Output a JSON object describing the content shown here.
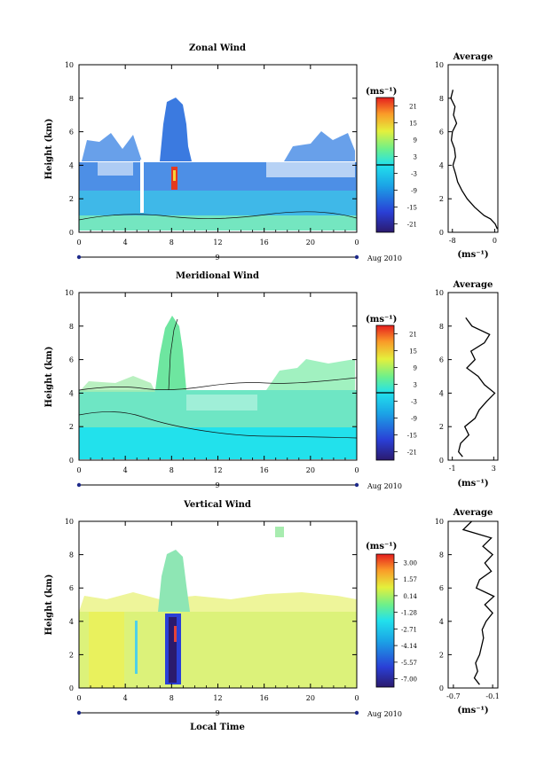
{
  "shared": {
    "x_ticks": [
      "0",
      "4",
      "8",
      "12",
      "16",
      "20",
      "0"
    ],
    "x_range": [
      0,
      24
    ],
    "date_day": "9",
    "date_label": "Aug 2010",
    "ylabel": "Height (km)",
    "y_ticks": [
      "0",
      "2",
      "4",
      "6",
      "8",
      "10"
    ],
    "y_range": [
      0,
      10
    ],
    "unit_label": "(ms⁻¹)",
    "bottom_xlabel": "Local Time"
  },
  "chart_data": [
    {
      "type": "heatmap",
      "title": "Zonal Wind",
      "colorbar_ticks": [
        "21",
        "15",
        "9",
        "3",
        "-3",
        "-9",
        "-15",
        "-21"
      ],
      "avg_title": "Average",
      "avg_ticks": [
        "-8",
        "0"
      ],
      "avg_xrange": [
        -8.8,
        0.6
      ],
      "avg_profile": {
        "height": [
          0.2,
          0.5,
          0.8,
          1.0,
          1.5,
          2.0,
          2.5,
          3.0,
          3.5,
          4.0,
          4.5,
          5.0,
          5.5,
          6.0,
          6.5,
          7.0,
          7.5,
          8.0,
          8.5
        ],
        "value": [
          0.5,
          0.1,
          -0.8,
          -2.0,
          -3.8,
          -5.2,
          -6.2,
          -7.0,
          -7.4,
          -7.9,
          -7.4,
          -7.6,
          -8.2,
          -8.0,
          -7.2,
          -7.8,
          -7.5,
          -8.3,
          -7.9
        ]
      }
    },
    {
      "type": "heatmap",
      "title": "Meridional Wind",
      "colorbar_ticks": [
        "21",
        "15",
        "9",
        "3",
        "-3",
        "-9",
        "-15",
        "-21"
      ],
      "avg_title": "Average",
      "avg_ticks": [
        "-1",
        "3"
      ],
      "avg_xrange": [
        -1.4,
        3.4
      ],
      "avg_profile": {
        "height": [
          0.2,
          0.5,
          1.0,
          1.5,
          2.0,
          2.5,
          3.0,
          3.5,
          4.0,
          4.5,
          5.0,
          5.5,
          6.0,
          6.5,
          7.0,
          7.5,
          8.0,
          8.5
        ],
        "value": [
          0.0,
          -0.4,
          -0.2,
          0.6,
          0.2,
          1.2,
          1.6,
          2.3,
          3.1,
          2.1,
          1.5,
          0.4,
          1.2,
          0.8,
          2.1,
          2.6,
          0.9,
          0.3
        ]
      }
    },
    {
      "type": "heatmap",
      "title": "Vertical Wind",
      "colorbar_ticks": [
        "3.00",
        "1.57",
        "0.14",
        "-1.28",
        "-2.71",
        "-4.14",
        "-5.57",
        "-7.00"
      ],
      "avg_title": "Average",
      "avg_ticks": [
        "-0.7",
        "-0.1"
      ],
      "avg_xrange": [
        -0.78,
        -0.02
      ],
      "avg_profile": {
        "height": [
          0.2,
          0.6,
          1.0,
          1.5,
          2.0,
          2.5,
          3.0,
          3.5,
          4.0,
          4.5,
          5.0,
          5.5,
          6.0,
          6.5,
          7.0,
          7.5,
          8.0,
          8.5,
          9.0,
          9.5,
          10.0
        ],
        "value": [
          -0.3,
          -0.38,
          -0.33,
          -0.36,
          -0.3,
          -0.27,
          -0.24,
          -0.26,
          -0.2,
          -0.1,
          -0.22,
          -0.08,
          -0.35,
          -0.3,
          -0.12,
          -0.22,
          -0.1,
          -0.25,
          -0.12,
          -0.55,
          -0.42
        ]
      }
    }
  ]
}
